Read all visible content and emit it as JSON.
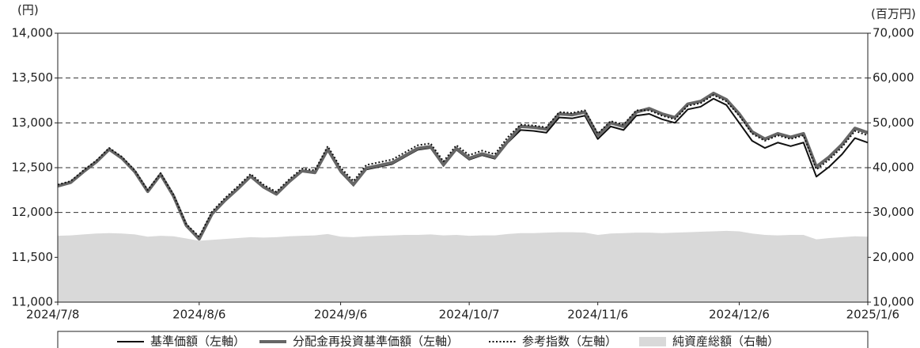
{
  "chart_data": {
    "type": "line",
    "y_unit_label": "(円)",
    "y2_unit_label": "(百万円)",
    "categories": [
      "2024/7/8",
      null,
      null,
      null,
      null,
      null,
      null,
      null,
      null,
      null,
      null,
      "2024/8/6",
      null,
      null,
      null,
      null,
      null,
      null,
      null,
      null,
      null,
      null,
      "2024/9/6",
      null,
      null,
      null,
      null,
      null,
      null,
      null,
      null,
      null,
      "2024/10/7",
      null,
      null,
      null,
      null,
      null,
      null,
      null,
      null,
      null,
      "2024/11/6",
      null,
      null,
      null,
      null,
      null,
      null,
      null,
      null,
      null,
      null,
      "2024/12/6",
      null,
      null,
      null,
      null,
      null,
      null,
      null,
      null,
      null,
      "2025/1/6"
    ],
    "series": [
      {
        "name": "基準価額（左軸）",
        "color": "#111111",
        "style": "solid",
        "width": 2,
        "values": [
          12290,
          12330,
          12450,
          12560,
          12700,
          12600,
          12450,
          12230,
          12420,
          12180,
          11850,
          11700,
          11980,
          12130,
          12260,
          12400,
          12280,
          12200,
          12340,
          12460,
          12440,
          12690,
          12450,
          12300,
          12480,
          12510,
          12540,
          12620,
          12700,
          12720,
          12520,
          12700,
          12590,
          12640,
          12600,
          12780,
          12920,
          12910,
          12890,
          13060,
          13050,
          13080,
          12820,
          12960,
          12920,
          13080,
          13100,
          13040,
          13000,
          13150,
          13180,
          13270,
          13200,
          13000,
          12800,
          12720,
          12780,
          12740,
          12780,
          12400,
          12510,
          12650,
          12830,
          12780
        ]
      },
      {
        "name": "分配金再投資基準価額（左軸）",
        "color": "#666666",
        "style": "solid",
        "width": 4,
        "values": [
          12295,
          12335,
          12455,
          12565,
          12705,
          12605,
          12455,
          12235,
          12425,
          12185,
          11855,
          11705,
          11985,
          12135,
          12265,
          12405,
          12285,
          12205,
          12345,
          12465,
          12445,
          12705,
          12465,
          12315,
          12495,
          12525,
          12555,
          12635,
          12715,
          12735,
          12535,
          12715,
          12605,
          12655,
          12615,
          12795,
          12960,
          12950,
          12930,
          13100,
          13090,
          13120,
          12860,
          13000,
          12960,
          13120,
          13160,
          13100,
          13060,
          13210,
          13240,
          13330,
          13260,
          13100,
          12900,
          12820,
          12880,
          12840,
          12880,
          12510,
          12620,
          12760,
          12940,
          12890
        ]
      },
      {
        "name": "参考指数（左軸）",
        "color": "#111111",
        "style": "dotted",
        "width": 2,
        "values": [
          12310,
          12350,
          12470,
          12580,
          12720,
          12620,
          12470,
          12250,
          12440,
          12200,
          11870,
          11730,
          12010,
          12160,
          12290,
          12430,
          12310,
          12230,
          12370,
          12490,
          12470,
          12740,
          12500,
          12350,
          12530,
          12560,
          12590,
          12670,
          12750,
          12770,
          12570,
          12750,
          12640,
          12690,
          12650,
          12840,
          12980,
          12970,
          12950,
          13120,
          13110,
          13140,
          12880,
          13020,
          12980,
          13140,
          13140,
          13080,
          13040,
          13190,
          13220,
          13310,
          13240,
          13080,
          12880,
          12800,
          12860,
          12820,
          12860,
          12480,
          12590,
          12730,
          12910,
          12860
        ]
      },
      {
        "name": "純資産総額（右軸）",
        "color": "#d9d9d9",
        "style": "area",
        "axis": "y2",
        "values": [
          24800,
          24900,
          25100,
          25300,
          25400,
          25300,
          25100,
          24600,
          24800,
          24700,
          24200,
          23700,
          23900,
          24100,
          24300,
          24500,
          24400,
          24500,
          24700,
          24800,
          24900,
          25200,
          24600,
          24500,
          24700,
          24800,
          24900,
          25000,
          25000,
          25100,
          24900,
          25000,
          24800,
          24900,
          24900,
          25200,
          25400,
          25400,
          25500,
          25600,
          25600,
          25500,
          25000,
          25300,
          25400,
          25500,
          25500,
          25400,
          25500,
          25600,
          25700,
          25800,
          25900,
          25800,
          25300,
          25000,
          24900,
          25000,
          25000,
          24000,
          24300,
          24500,
          24700,
          24600
        ]
      }
    ],
    "ylim": [
      11000,
      14000
    ],
    "yticks": [
      {
        "value": 11000,
        "label": "11,000"
      },
      {
        "value": 11500,
        "label": "11,500"
      },
      {
        "value": 12000,
        "label": "12,000"
      },
      {
        "value": 12500,
        "label": "12,500"
      },
      {
        "value": 13000,
        "label": "13,000"
      },
      {
        "value": 13500,
        "label": "13,500"
      },
      {
        "value": 14000,
        "label": "14,000"
      }
    ],
    "y2lim": [
      10000,
      70000
    ],
    "y2ticks": [
      {
        "value": 10000,
        "label": "10,000"
      },
      {
        "value": 20000,
        "label": "20,000"
      },
      {
        "value": 30000,
        "label": "30,000"
      },
      {
        "value": 40000,
        "label": "40,000"
      },
      {
        "value": 50000,
        "label": "50,000"
      },
      {
        "value": 60000,
        "label": "60,000"
      },
      {
        "value": 70000,
        "label": "70,000"
      }
    ],
    "grid": true,
    "legend": "bottom"
  }
}
